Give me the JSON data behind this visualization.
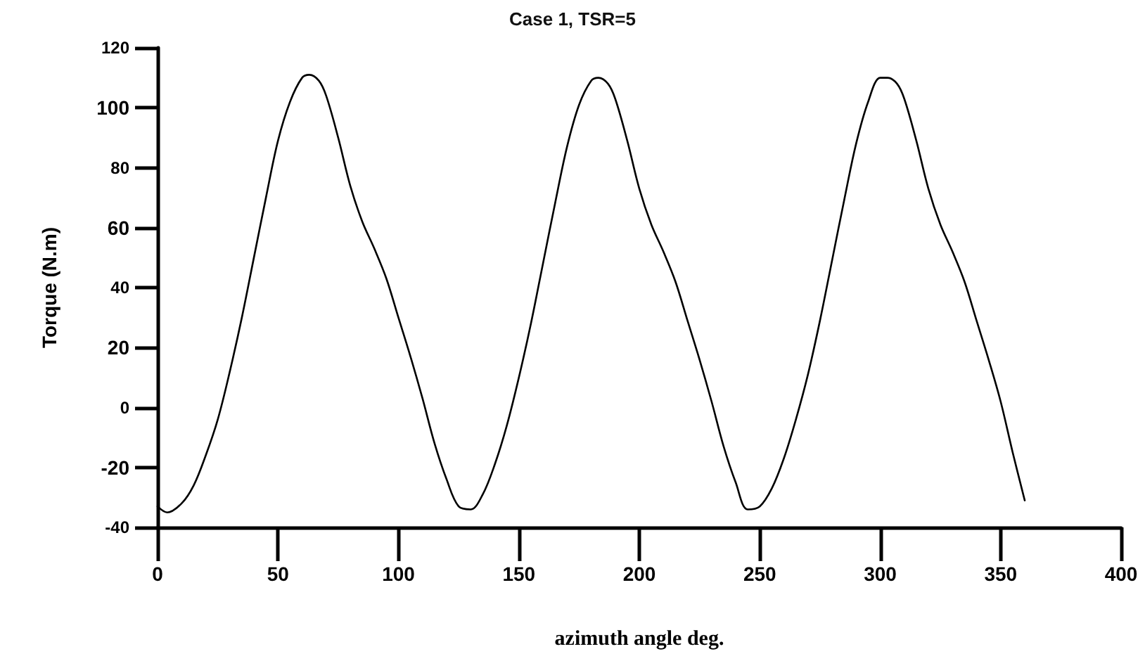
{
  "chart_data": {
    "type": "line",
    "title": "Case 1, TSR=5",
    "xlabel": "azimuth angle deg.",
    "ylabel": "Torque (N.m)",
    "xlim": [
      0,
      400
    ],
    "xticks": [
      0,
      50,
      100,
      150,
      200,
      250,
      300,
      350,
      400
    ],
    "ylim": [
      -40,
      120
    ],
    "yticks": [
      -40,
      -20,
      0,
      20,
      40,
      60,
      80,
      100,
      120
    ],
    "grid": false,
    "marker": "none",
    "line_style": "solid",
    "series": [
      {
        "color": "#000000",
        "x": [
          0,
          4,
          10,
          15,
          20,
          25,
          30,
          35,
          40,
          45,
          50,
          55,
          60,
          63,
          67,
          70,
          75,
          80,
          85,
          90,
          95,
          100,
          105,
          110,
          115,
          120,
          125,
          130,
          135,
          140,
          145,
          150,
          155,
          160,
          165,
          170,
          175,
          180,
          183,
          187,
          190,
          195,
          200,
          205,
          210,
          215,
          220,
          225,
          230,
          235,
          240,
          245,
          250,
          255,
          260,
          265,
          270,
          275,
          280,
          285,
          290,
          295,
          300,
          303,
          307,
          310,
          315,
          320,
          325,
          330,
          335,
          340,
          345,
          350,
          355,
          360
        ],
        "values": [
          -33,
          -35,
          -32,
          -26,
          -16,
          -4,
          12,
          30,
          50,
          70,
          89,
          102,
          110,
          111,
          109,
          104,
          90,
          74,
          62,
          53,
          43,
          30,
          17,
          3,
          -12,
          -24,
          -33,
          -34,
          -29,
          -19,
          -6,
          10,
          28,
          48,
          68,
          87,
          101,
          109,
          110,
          108,
          103,
          89,
          73,
          61,
          52,
          42,
          29,
          16,
          2,
          -13,
          -25,
          -34,
          -33,
          -27,
          -17,
          -4,
          11,
          29,
          49,
          69,
          88,
          102,
          110,
          110,
          108,
          103,
          89,
          73,
          61,
          52,
          42,
          29,
          16,
          2,
          -15,
          -31
        ]
      }
    ]
  }
}
